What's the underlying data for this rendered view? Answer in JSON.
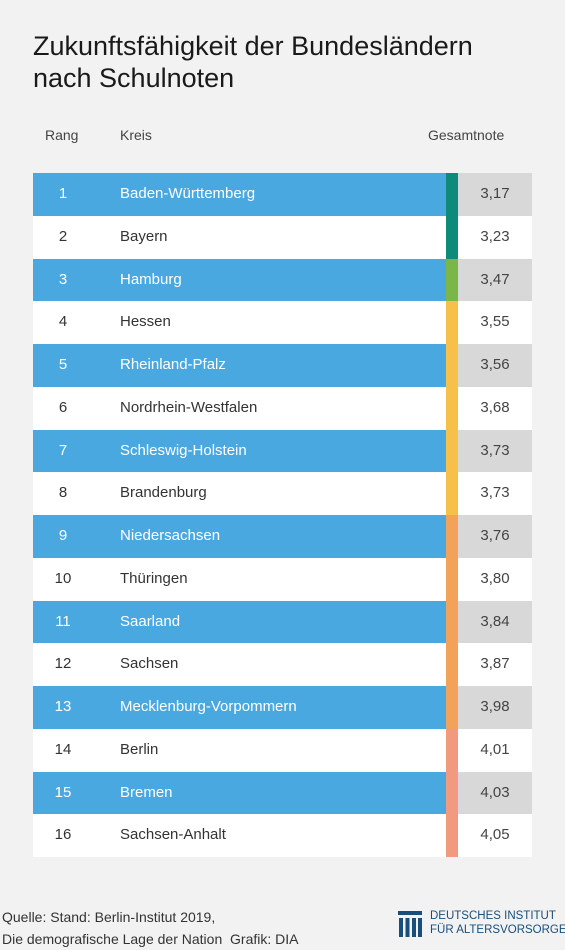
{
  "title_line1": "Zukunftsfähigkeit der Bundesländern",
  "title_line2": "nach Schulnoten",
  "headers": {
    "rank": "Rang",
    "kreis": "Kreis",
    "score": "Gesamtnote"
  },
  "chart_data": {
    "type": "table",
    "columns": [
      "Rang",
      "Kreis",
      "Gesamtnote"
    ],
    "rows": [
      {
        "rank": "1",
        "name": "Baden-Württemberg",
        "score": "3,17",
        "color": "#0e8a7a"
      },
      {
        "rank": "2",
        "name": "Bayern",
        "score": "3,23",
        "color": "#0e8a7a"
      },
      {
        "rank": "3",
        "name": "Hamburg",
        "score": "3,47",
        "color": "#7ab648"
      },
      {
        "rank": "4",
        "name": "Hessen",
        "score": "3,55",
        "color": "#f7c04a"
      },
      {
        "rank": "5",
        "name": "Rheinland-Pfalz",
        "score": "3,56",
        "color": "#f7c04a"
      },
      {
        "rank": "6",
        "name": "Nordrhein-Westfalen",
        "score": "3,68",
        "color": "#f7c04a"
      },
      {
        "rank": "7",
        "name": "Schleswig-Holstein",
        "score": "3,73",
        "color": "#f7c04a"
      },
      {
        "rank": "8",
        "name": "Brandenburg",
        "score": "3,73",
        "color": "#f7c04a"
      },
      {
        "rank": "9",
        "name": "Niedersachsen",
        "score": "3,76",
        "color": "#f3a25a"
      },
      {
        "rank": "10",
        "name": "Thüringen",
        "score": "3,80",
        "color": "#f3a25a"
      },
      {
        "rank": "11",
        "name": "Saarland",
        "score": "3,84",
        "color": "#f3a25a"
      },
      {
        "rank": "12",
        "name": "Sachsen",
        "score": "3,87",
        "color": "#f3a25a"
      },
      {
        "rank": "13",
        "name": "Mecklenburg-Vorpommern",
        "score": "3,98",
        "color": "#f3a25a"
      },
      {
        "rank": "14",
        "name": "Berlin",
        "score": "4,01",
        "color": "#f19a80"
      },
      {
        "rank": "15",
        "name": "Bremen",
        "score": "4,03",
        "color": "#f19a80"
      },
      {
        "rank": "16",
        "name": "Sachsen-Anhalt",
        "score": "4,05",
        "color": "#f19a80"
      }
    ]
  },
  "footer": {
    "source_line1": "Quelle: Stand: Berlin-Institut 2019,",
    "source_line2": "Die demografische Lage der Nation",
    "credit": "Grafik: DIA",
    "logo_line1": "DEUTSCHES INSTITUT",
    "logo_line2": "FÜR ALTERSVORSORGE"
  },
  "colors": {
    "row_blue": "#4aa8e0",
    "score_grey": "#d8d8d8",
    "logo_blue": "#1a4e7a"
  }
}
